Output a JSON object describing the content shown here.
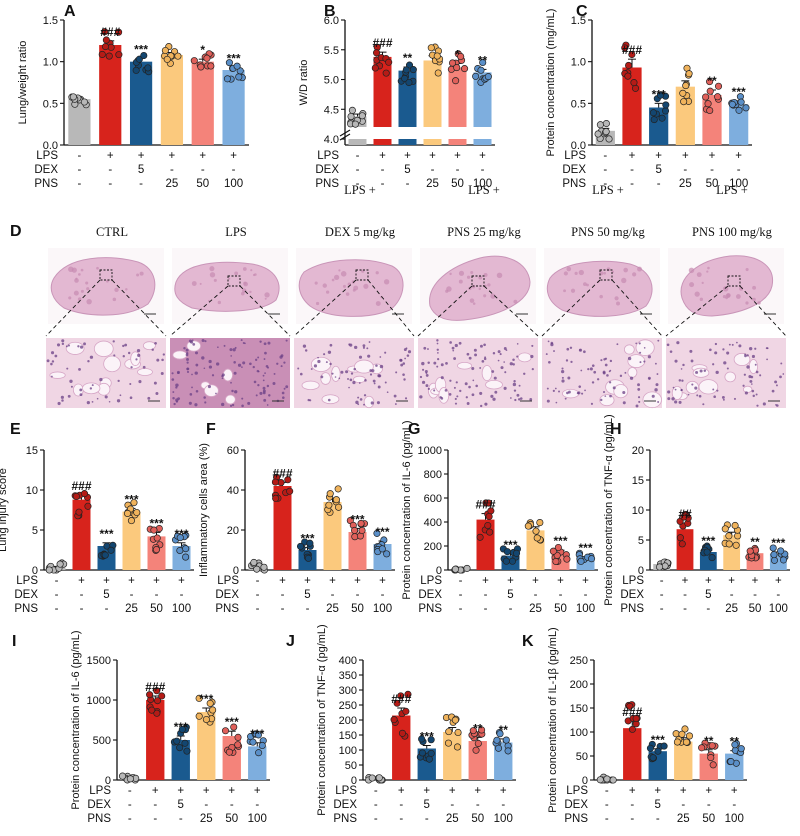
{
  "figure": {
    "panel_d_label": "D",
    "panel_d_titles": [
      {
        "line1": "",
        "line2": "CTRL"
      },
      {
        "line1": "",
        "line2": "LPS"
      },
      {
        "line1": "LPS +",
        "line2": "DEX 5 mg/kg"
      },
      {
        "line1": "LPS +",
        "line2": "PNS 25 mg/kg"
      },
      {
        "line1": "LPS +",
        "line2": "PNS 50 mg/kg"
      },
      {
        "line1": "LPS +",
        "line2": "PNS 100 mg/kg"
      }
    ],
    "treatment_rows": [
      {
        "name": "LPS",
        "values": [
          "-",
          "+",
          "+",
          "+",
          "+",
          "+"
        ]
      },
      {
        "name": "DEX",
        "values": [
          "-",
          "-",
          "5",
          "-",
          "-",
          "-"
        ]
      },
      {
        "name": "PNS",
        "values": [
          "-",
          "-",
          "-",
          "25",
          "50",
          "100"
        ]
      }
    ],
    "group_colors": [
      "#b8b8b8",
      "#d7231c",
      "#1a5a8f",
      "#fbc97d",
      "#f4837a",
      "#7eaede"
    ],
    "dot_colors": [
      "#b8b8b8",
      "#b51b16",
      "#134670",
      "#f0b35c",
      "#e0605a",
      "#5a8fc8"
    ]
  },
  "chart_data": [
    {
      "panel": "A",
      "type": "bar",
      "title": "",
      "xlabel": "",
      "ylabel": "Lung/weight ratio",
      "categories": [
        "CTRL",
        "LPS",
        "LPS+DEX 5",
        "LPS+PNS 25",
        "LPS+PNS 50",
        "LPS+PNS 100"
      ],
      "values": [
        0.55,
        1.2,
        1.0,
        1.08,
        1.0,
        0.9
      ],
      "errors": [
        0.02,
        0.05,
        0.04,
        0.03,
        0.03,
        0.03
      ],
      "significance": [
        "",
        "###",
        "***",
        "",
        "*",
        "***"
      ],
      "ylim": [
        0,
        1.5
      ],
      "yticks": [
        0.0,
        0.5,
        1.0,
        1.5
      ],
      "ytick_labels": [
        "0.0",
        "0.5",
        "1.0",
        "1.5"
      ]
    },
    {
      "panel": "B",
      "type": "bar",
      "title": "",
      "xlabel": "",
      "ylabel": "W/D ratio",
      "categories": [
        "CTRL",
        "LPS",
        "LPS+DEX 5",
        "LPS+PNS 25",
        "LPS+PNS 50",
        "LPS+PNS 100"
      ],
      "values": [
        4.38,
        5.38,
        5.15,
        5.32,
        5.2,
        5.12
      ],
      "errors": [
        0.04,
        0.08,
        0.06,
        0.08,
        0.07,
        0.05
      ],
      "significance": [
        "",
        "###",
        "**",
        "",
        "*",
        "**"
      ],
      "ylim": [
        3.9,
        6.0
      ],
      "axis_break": true,
      "yticks": [
        4.0,
        4.5,
        5.0,
        5.5,
        6.0
      ],
      "ytick_labels": [
        "4.0",
        "4.5",
        "5.0",
        "5.5",
        "6.0"
      ]
    },
    {
      "panel": "C",
      "type": "bar",
      "title": "",
      "xlabel": "",
      "ylabel": "Protein concentration (mg/mL)",
      "categories": [
        "CTRL",
        "LPS",
        "LPS+DEX 5",
        "LPS+PNS 25",
        "LPS+PNS 50",
        "LPS+PNS 100"
      ],
      "values": [
        0.17,
        0.93,
        0.45,
        0.7,
        0.6,
        0.49
      ],
      "errors": [
        0.03,
        0.1,
        0.05,
        0.07,
        0.06,
        0.04
      ],
      "significance": [
        "",
        "###",
        "***",
        "",
        "**",
        "***"
      ],
      "ylim": [
        0,
        1.5
      ],
      "yticks": [
        0.0,
        0.5,
        1.0,
        1.5
      ],
      "ytick_labels": [
        "0.0",
        "0.5",
        "1.0",
        "1.5"
      ]
    },
    {
      "panel": "E",
      "type": "bar",
      "title": "",
      "xlabel": "",
      "ylabel": "Lung injury score",
      "categories": [
        "CTRL",
        "LPS",
        "LPS+DEX 5",
        "LPS+PNS 25",
        "LPS+PNS 50",
        "LPS+PNS 100"
      ],
      "values": [
        0.3,
        8.8,
        3.0,
        7.3,
        4.2,
        3.0
      ],
      "errors": [
        0.15,
        0.6,
        0.4,
        0.4,
        0.5,
        0.4
      ],
      "significance": [
        "",
        "###",
        "***",
        "***",
        "***",
        "***"
      ],
      "ylim": [
        0,
        15
      ],
      "yticks": [
        0,
        5,
        10,
        15
      ],
      "ytick_labels": [
        "0",
        "5",
        "10",
        "15"
      ]
    },
    {
      "panel": "F",
      "type": "bar",
      "title": "",
      "xlabel": "",
      "ylabel": "Inflammatory cells area (%)",
      "categories": [
        "CTRL",
        "LPS",
        "LPS+DEX 5",
        "LPS+PNS 25",
        "LPS+PNS 50",
        "LPS+PNS 100"
      ],
      "values": [
        3,
        42,
        10,
        34,
        19,
        13
      ],
      "errors": [
        0.8,
        1.8,
        1.2,
        2.0,
        1.8,
        1.5
      ],
      "significance": [
        "",
        "###",
        "***",
        "",
        "***",
        "***"
      ],
      "ylim": [
        0,
        60
      ],
      "yticks": [
        0,
        20,
        40,
        60
      ],
      "ytick_labels": [
        "0",
        "20",
        "40",
        "60"
      ]
    },
    {
      "panel": "G",
      "type": "bar",
      "title": "",
      "xlabel": "",
      "ylabel": "Protein concentration of IL-6 (pg/mL)",
      "categories": [
        "CTRL",
        "LPS",
        "LPS+DEX 5",
        "LPS+PNS 25",
        "LPS+PNS 50",
        "LPS+PNS 100"
      ],
      "values": [
        2,
        420,
        120,
        330,
        140,
        100
      ],
      "errors": [
        2,
        50,
        15,
        30,
        25,
        10
      ],
      "significance": [
        "",
        "###",
        "***",
        "",
        "***",
        "***"
      ],
      "ylim": [
        0,
        1000
      ],
      "yticks": [
        0,
        200,
        400,
        600,
        800,
        1000
      ],
      "ytick_labels": [
        "0",
        "200",
        "400",
        "600",
        "800",
        "1000"
      ]
    },
    {
      "panel": "H",
      "type": "bar",
      "title": "",
      "xlabel": "",
      "ylabel": "Protein concentration of TNF-α (pg/mL)",
      "categories": [
        "CTRL",
        "LPS",
        "LPS+DEX 5",
        "LPS+PNS 25",
        "LPS+PNS 50",
        "LPS+PNS 100"
      ],
      "values": [
        1,
        6.8,
        3.0,
        5.8,
        2.8,
        2.7
      ],
      "errors": [
        0.1,
        1.0,
        0.3,
        0.5,
        0.4,
        0.3
      ],
      "significance": [
        "",
        "##",
        "***",
        "",
        "**",
        "***"
      ],
      "ylim": [
        0,
        20
      ],
      "yticks": [
        0,
        5,
        10,
        15,
        20
      ],
      "ytick_labels": [
        "0",
        "5",
        "10",
        "15",
        "20"
      ]
    },
    {
      "panel": "I",
      "type": "bar",
      "title": "",
      "xlabel": "",
      "ylabel": "Protein concentration of IL-6 (pg/mL)",
      "categories": [
        "CTRL",
        "LPS",
        "LPS+DEX 5",
        "LPS+PNS 25",
        "LPS+PNS 50",
        "LPS+PNS 100"
      ],
      "values": [
        20,
        1000,
        500,
        850,
        550,
        420
      ],
      "errors": [
        5,
        50,
        50,
        50,
        60,
        45
      ],
      "significance": [
        "",
        "###",
        "***",
        "***",
        "***",
        "***"
      ],
      "ylim": [
        0,
        1500
      ],
      "yticks": [
        0,
        500,
        1000,
        1500
      ],
      "ytick_labels": [
        "0",
        "500",
        "1000",
        "1500"
      ]
    },
    {
      "panel": "J",
      "type": "bar",
      "title": "",
      "xlabel": "",
      "ylabel": "Protein concentration of TNF-α (pg/mL)",
      "categories": [
        "CTRL",
        "LPS",
        "LPS+DEX 5",
        "LPS+PNS 25",
        "LPS+PNS 50",
        "LPS+PNS 100"
      ],
      "values": [
        3,
        215,
        105,
        160,
        130,
        125
      ],
      "errors": [
        1,
        25,
        10,
        15,
        12,
        12
      ],
      "significance": [
        "",
        "###",
        "***",
        "",
        "**",
        "**"
      ],
      "ylim": [
        0,
        400
      ],
      "yticks": [
        0,
        50,
        100,
        150,
        200,
        250,
        300,
        350,
        400
      ],
      "ytick_labels": [
        "0",
        "50",
        "100",
        "150",
        "200",
        "250",
        "300",
        "350",
        "400"
      ]
    },
    {
      "panel": "K",
      "type": "bar",
      "title": "",
      "xlabel": "",
      "ylabel": "Protein concentration of IL-1β (pg/mL)",
      "categories": [
        "CTRL",
        "LPS",
        "LPS+DEX 5",
        "LPS+PNS 25",
        "LPS+PNS 50",
        "LPS+PNS 100"
      ],
      "values": [
        2,
        108,
        60,
        80,
        55,
        55
      ],
      "errors": [
        0.5,
        15,
        5,
        8,
        8,
        6
      ],
      "significance": [
        "",
        "###",
        "***",
        "",
        "**",
        "**"
      ],
      "ylim": [
        0,
        250
      ],
      "yticks": [
        0,
        50,
        100,
        150,
        200,
        250
      ],
      "ytick_labels": [
        "0",
        "50",
        "100",
        "150",
        "200",
        "250"
      ]
    }
  ]
}
